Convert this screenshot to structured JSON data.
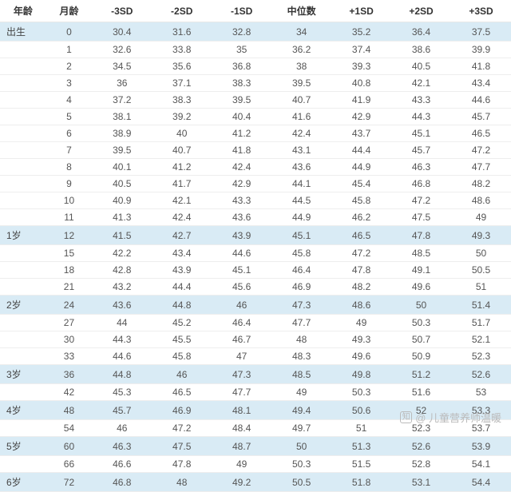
{
  "table": {
    "type": "table",
    "background_color": "#ffffff",
    "highlight_color": "#d9ebf5",
    "border_color": "#eeeeee",
    "text_color": "#555555",
    "header_fontweight": "bold",
    "fontsize": 12,
    "columns": [
      "年龄",
      "月龄",
      "-3SD",
      "-2SD",
      "-1SD",
      "中位数",
      "+1SD",
      "+2SD",
      "+3SD"
    ],
    "col_widths_pct": [
      9,
      9,
      11.7,
      11.7,
      11.7,
      11.7,
      11.7,
      11.7,
      11.7
    ],
    "rows": [
      {
        "hl": true,
        "cells": [
          "出生",
          "0",
          "30.4",
          "31.6",
          "32.8",
          "34",
          "35.2",
          "36.4",
          "37.5"
        ]
      },
      {
        "hl": false,
        "cells": [
          "",
          "1",
          "32.6",
          "33.8",
          "35",
          "36.2",
          "37.4",
          "38.6",
          "39.9"
        ]
      },
      {
        "hl": false,
        "cells": [
          "",
          "2",
          "34.5",
          "35.6",
          "36.8",
          "38",
          "39.3",
          "40.5",
          "41.8"
        ]
      },
      {
        "hl": false,
        "cells": [
          "",
          "3",
          "36",
          "37.1",
          "38.3",
          "39.5",
          "40.8",
          "42.1",
          "43.4"
        ]
      },
      {
        "hl": false,
        "cells": [
          "",
          "4",
          "37.2",
          "38.3",
          "39.5",
          "40.7",
          "41.9",
          "43.3",
          "44.6"
        ]
      },
      {
        "hl": false,
        "cells": [
          "",
          "5",
          "38.1",
          "39.2",
          "40.4",
          "41.6",
          "42.9",
          "44.3",
          "45.7"
        ]
      },
      {
        "hl": false,
        "cells": [
          "",
          "6",
          "38.9",
          "40",
          "41.2",
          "42.4",
          "43.7",
          "45.1",
          "46.5"
        ]
      },
      {
        "hl": false,
        "cells": [
          "",
          "7",
          "39.5",
          "40.7",
          "41.8",
          "43.1",
          "44.4",
          "45.7",
          "47.2"
        ]
      },
      {
        "hl": false,
        "cells": [
          "",
          "8",
          "40.1",
          "41.2",
          "42.4",
          "43.6",
          "44.9",
          "46.3",
          "47.7"
        ]
      },
      {
        "hl": false,
        "cells": [
          "",
          "9",
          "40.5",
          "41.7",
          "42.9",
          "44.1",
          "45.4",
          "46.8",
          "48.2"
        ]
      },
      {
        "hl": false,
        "cells": [
          "",
          "10",
          "40.9",
          "42.1",
          "43.3",
          "44.5",
          "45.8",
          "47.2",
          "48.6"
        ]
      },
      {
        "hl": false,
        "cells": [
          "",
          "11",
          "41.3",
          "42.4",
          "43.6",
          "44.9",
          "46.2",
          "47.5",
          "49"
        ]
      },
      {
        "hl": true,
        "cells": [
          "1岁",
          "12",
          "41.5",
          "42.7",
          "43.9",
          "45.1",
          "46.5",
          "47.8",
          "49.3"
        ]
      },
      {
        "hl": false,
        "cells": [
          "",
          "15",
          "42.2",
          "43.4",
          "44.6",
          "45.8",
          "47.2",
          "48.5",
          "50"
        ]
      },
      {
        "hl": false,
        "cells": [
          "",
          "18",
          "42.8",
          "43.9",
          "45.1",
          "46.4",
          "47.8",
          "49.1",
          "50.5"
        ]
      },
      {
        "hl": false,
        "cells": [
          "",
          "21",
          "43.2",
          "44.4",
          "45.6",
          "46.9",
          "48.2",
          "49.6",
          "51"
        ]
      },
      {
        "hl": true,
        "cells": [
          "2岁",
          "24",
          "43.6",
          "44.8",
          "46",
          "47.3",
          "48.6",
          "50",
          "51.4"
        ]
      },
      {
        "hl": false,
        "cells": [
          "",
          "27",
          "44",
          "45.2",
          "46.4",
          "47.7",
          "49",
          "50.3",
          "51.7"
        ]
      },
      {
        "hl": false,
        "cells": [
          "",
          "30",
          "44.3",
          "45.5",
          "46.7",
          "48",
          "49.3",
          "50.7",
          "52.1"
        ]
      },
      {
        "hl": false,
        "cells": [
          "",
          "33",
          "44.6",
          "45.8",
          "47",
          "48.3",
          "49.6",
          "50.9",
          "52.3"
        ]
      },
      {
        "hl": true,
        "cells": [
          "3岁",
          "36",
          "44.8",
          "46",
          "47.3",
          "48.5",
          "49.8",
          "51.2",
          "52.6"
        ]
      },
      {
        "hl": false,
        "cells": [
          "",
          "42",
          "45.3",
          "46.5",
          "47.7",
          "49",
          "50.3",
          "51.6",
          "53"
        ]
      },
      {
        "hl": true,
        "cells": [
          "4岁",
          "48",
          "45.7",
          "46.9",
          "48.1",
          "49.4",
          "50.6",
          "52",
          "53.3"
        ]
      },
      {
        "hl": false,
        "cells": [
          "",
          "54",
          "46",
          "47.2",
          "48.4",
          "49.7",
          "51",
          "52.3",
          "53.7"
        ]
      },
      {
        "hl": true,
        "cells": [
          "5岁",
          "60",
          "46.3",
          "47.5",
          "48.7",
          "50",
          "51.3",
          "52.6",
          "53.9"
        ]
      },
      {
        "hl": false,
        "cells": [
          "",
          "66",
          "46.6",
          "47.8",
          "49",
          "50.3",
          "51.5",
          "52.8",
          "54.1"
        ]
      },
      {
        "hl": true,
        "cells": [
          "6岁",
          "72",
          "46.8",
          "48",
          "49.2",
          "50.5",
          "51.8",
          "53.1",
          "54.4"
        ]
      }
    ]
  },
  "watermark": {
    "logo_text": "知",
    "text": "@ 儿童营养师温暖",
    "color": "#bbbbbb"
  }
}
